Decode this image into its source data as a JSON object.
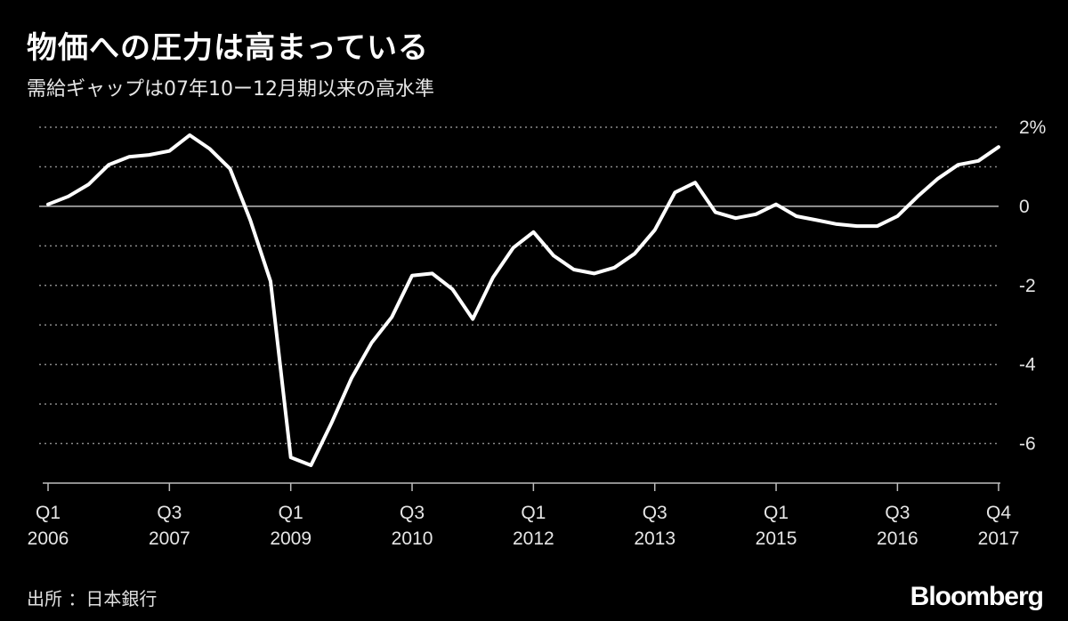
{
  "title": "物価への圧力は高まっている",
  "subtitle": "需給ギャップは07年10ー12月期以来の高水準",
  "source": "出所 ：日本銀行",
  "logo": "Bloomberg",
  "chart_data": {
    "type": "line",
    "title": "物価への圧力は高まっている",
    "subtitle": "需給ギャップは07年10ー12月期以来の高水準",
    "xlabel": "",
    "ylabel": "",
    "ylim": [
      -7,
      2
    ],
    "y_ticks": [
      {
        "value": 2,
        "label": "2%"
      },
      {
        "value": 0,
        "label": "0"
      },
      {
        "value": -2,
        "label": "-2"
      },
      {
        "value": -4,
        "label": "-4"
      },
      {
        "value": -6,
        "label": "-6"
      }
    ],
    "minor_gridlines": [
      1,
      -1,
      -3,
      -5
    ],
    "grid": true,
    "x_ticks": [
      {
        "quarter": "2006 Q1",
        "line1": "Q1",
        "line2": "2006"
      },
      {
        "quarter": "2007 Q3",
        "line1": "Q3",
        "line2": "2007"
      },
      {
        "quarter": "2009 Q1",
        "line1": "Q1",
        "line2": "2009"
      },
      {
        "quarter": "2010 Q3",
        "line1": "Q3",
        "line2": "2010"
      },
      {
        "quarter": "2012 Q1",
        "line1": "Q1",
        "line2": "2012"
      },
      {
        "quarter": "2013 Q3",
        "line1": "Q3",
        "line2": "2013"
      },
      {
        "quarter": "2015 Q1",
        "line1": "Q1",
        "line2": "2015"
      },
      {
        "quarter": "2016 Q3",
        "line1": "Q3",
        "line2": "2016"
      },
      {
        "quarter": "2017 Q4",
        "line1": "Q4",
        "line2": "2017"
      }
    ],
    "series": [
      {
        "color": "#ffffff",
        "x": [
          "2006 Q1",
          "2006 Q2",
          "2006 Q3",
          "2006 Q4",
          "2007 Q1",
          "2007 Q2",
          "2007 Q3",
          "2007 Q4",
          "2008 Q1",
          "2008 Q2",
          "2008 Q3",
          "2008 Q4",
          "2009 Q1",
          "2009 Q2",
          "2009 Q3",
          "2009 Q4",
          "2010 Q1",
          "2010 Q2",
          "2010 Q3",
          "2010 Q4",
          "2011 Q1",
          "2011 Q2",
          "2011 Q3",
          "2011 Q4",
          "2012 Q1",
          "2012 Q2",
          "2012 Q3",
          "2012 Q4",
          "2013 Q1",
          "2013 Q2",
          "2013 Q3",
          "2013 Q4",
          "2014 Q1",
          "2014 Q2",
          "2014 Q3",
          "2014 Q4",
          "2015 Q1",
          "2015 Q2",
          "2015 Q3",
          "2015 Q4",
          "2016 Q1",
          "2016 Q2",
          "2016 Q3",
          "2016 Q4",
          "2017 Q1",
          "2017 Q2",
          "2017 Q3",
          "2017 Q4"
        ],
        "values": [
          0.05,
          0.25,
          0.55,
          1.05,
          1.25,
          1.3,
          1.4,
          1.8,
          1.45,
          0.95,
          -0.35,
          -1.9,
          -6.35,
          -6.55,
          -5.5,
          -4.35,
          -3.45,
          -2.8,
          -1.75,
          -1.7,
          -2.1,
          -2.85,
          -1.8,
          -1.05,
          -0.65,
          -1.25,
          -1.6,
          -1.7,
          -1.55,
          -1.2,
          -0.6,
          0.35,
          0.6,
          -0.15,
          -0.3,
          -0.2,
          0.05,
          -0.25,
          -0.35,
          -0.45,
          -0.5,
          -0.5,
          -0.25,
          0.25,
          0.7,
          1.05,
          1.15,
          1.5
        ]
      }
    ]
  }
}
